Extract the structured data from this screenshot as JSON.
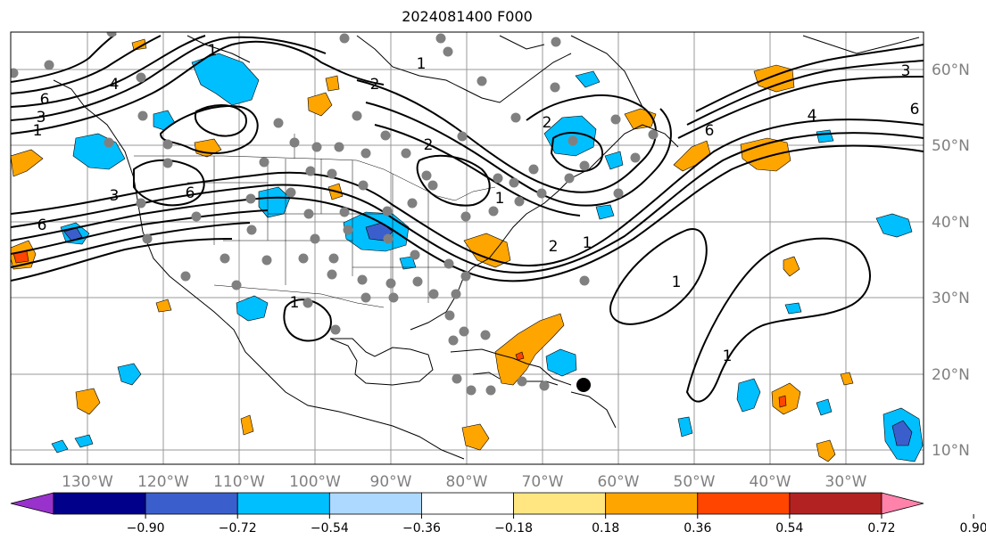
{
  "title": "2024081400 F000",
  "map": {
    "lon_labels": [
      "130°W",
      "120°W",
      "110°W",
      "100°W",
      "90°W",
      "80°W",
      "70°W",
      "60°W",
      "50°W",
      "40°W",
      "30°W"
    ],
    "lat_labels": [
      "60°N",
      "50°N",
      "40°N",
      "30°N",
      "20°N",
      "10°N"
    ],
    "contour_labels": [
      "6",
      "4",
      "3",
      "1",
      "1",
      "6",
      "6",
      "3",
      "1",
      "2",
      "1",
      "2",
      "2",
      "1",
      "1",
      "1",
      "1",
      "2",
      "6",
      "4",
      "6",
      "3"
    ]
  },
  "colorbar": {
    "colors": [
      "#9932cc",
      "#00008b",
      "#3a5fcd",
      "#00bfff",
      "#add8ff",
      "#ffffff",
      "#ffe680",
      "#ffa500",
      "#ff4500",
      "#b22222",
      "#ff82ab"
    ],
    "tick_labels": [
      "−0.90",
      "−0.72",
      "−0.54",
      "−0.36",
      "−0.18",
      "0.18",
      "0.36",
      "0.54",
      "0.72",
      "0.90"
    ]
  },
  "colors": {
    "positive": "#ffa500",
    "negative": "#00bfff",
    "strong_negative": "#3a5fcd",
    "strong_positive": "#ff4500",
    "station": "#808080"
  }
}
